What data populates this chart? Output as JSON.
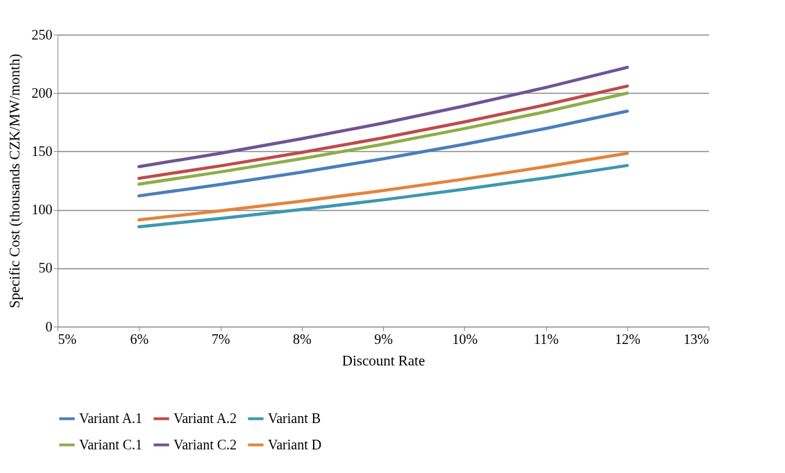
{
  "chart_data": {
    "type": "line",
    "xlabel": "Discount Rate",
    "ylabel": "Specific Cost (thousands CZK/MW/month)",
    "x": [
      6,
      7,
      8,
      9,
      10,
      11,
      12
    ],
    "xlim": [
      5,
      13
    ],
    "xticks": [
      {
        "value": 5,
        "label": "5%"
      },
      {
        "value": 6,
        "label": "6%"
      },
      {
        "value": 7,
        "label": "7%"
      },
      {
        "value": 8,
        "label": "8%"
      },
      {
        "value": 9,
        "label": "9%"
      },
      {
        "value": 10,
        "label": "10%"
      },
      {
        "value": 11,
        "label": "11%"
      },
      {
        "value": 12,
        "label": "12%"
      },
      {
        "value": 13,
        "label": "13%"
      }
    ],
    "ylim": [
      0,
      250
    ],
    "yticks": [
      0,
      50,
      100,
      150,
      200,
      250
    ],
    "grid": "y",
    "legend": "bottom",
    "marker": "none",
    "line_style": "solid",
    "series": [
      {
        "name": "Variant A.1",
        "color": "#4a7ebb",
        "values": [
          112,
          121.7,
          132.3,
          143.7,
          156.2,
          169.7,
          184.5
        ]
      },
      {
        "name": "Variant A.2",
        "color": "#be4b48",
        "values": [
          127,
          137.7,
          149.2,
          161.7,
          175.3,
          190,
          206
        ]
      },
      {
        "name": "Variant B",
        "color": "#3e97b0",
        "values": [
          85.5,
          92.6,
          100.3,
          108.6,
          117.7,
          127.4,
          138
        ]
      },
      {
        "name": "Variant C.1",
        "color": "#8ead48",
        "values": [
          122,
          132.5,
          143.8,
          156.2,
          169.6,
          184.1,
          200
        ]
      },
      {
        "name": "Variant C.2",
        "color": "#6e5494",
        "values": [
          137,
          148.5,
          160.9,
          174.3,
          189,
          204.8,
          222
        ]
      },
      {
        "name": "Variant D",
        "color": "#e2843a",
        "values": [
          91.5,
          99.2,
          107.5,
          116.6,
          126.4,
          137,
          148.5
        ]
      }
    ]
  }
}
